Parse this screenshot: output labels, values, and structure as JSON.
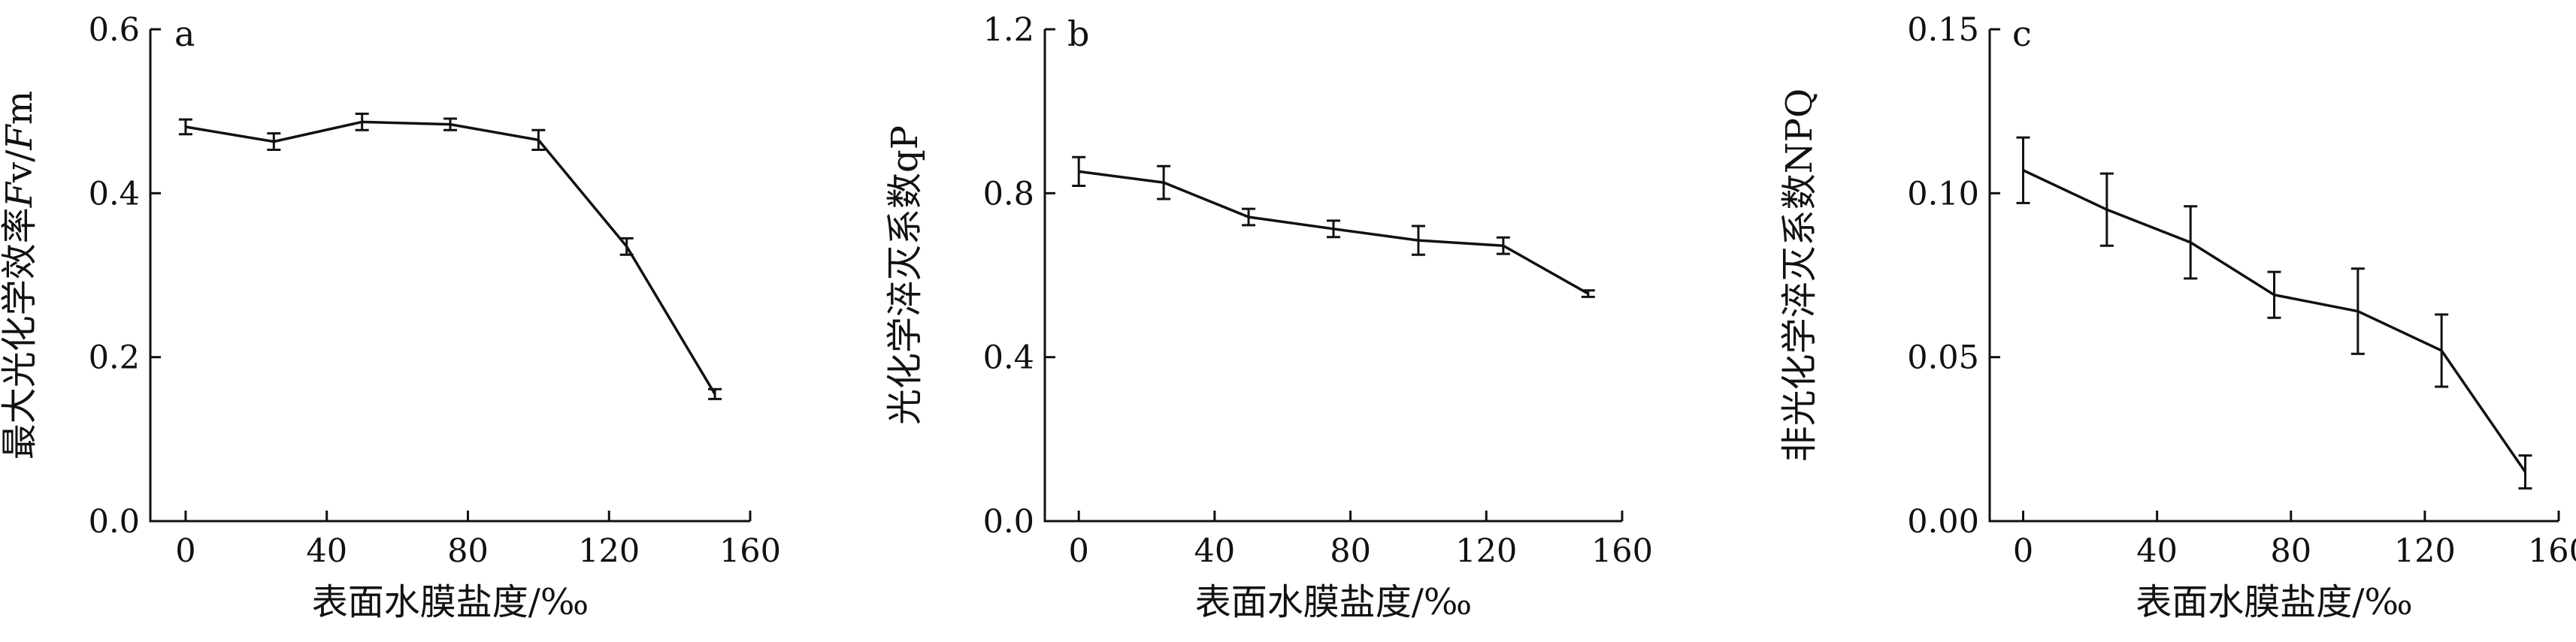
{
  "chart_data": [
    {
      "type": "line",
      "panel": "a",
      "xlabel": "表面水膜盐度/‰",
      "ylabel": "最大光化学效率Fv/Fm",
      "ylabel_parts": [
        {
          "text": "最大光化学效率",
          "italic": false
        },
        {
          "text": "F",
          "italic": true
        },
        {
          "text": "v/",
          "italic": false
        },
        {
          "text": "F",
          "italic": true
        },
        {
          "text": "m",
          "italic": false
        }
      ],
      "xlim": [
        -10,
        160
      ],
      "ylim": [
        0,
        0.6
      ],
      "x_ticks": [
        0,
        40,
        80,
        120,
        160
      ],
      "y_ticks": [
        0,
        0.2,
        0.4,
        0.6
      ],
      "x_tick_labels": [
        "0",
        "40",
        "80",
        "120",
        "160"
      ],
      "y_tick_labels": [
        "0.0",
        "0.2",
        "0.4",
        "0.6"
      ],
      "x": [
        0,
        25,
        50,
        75,
        100,
        125,
        150
      ],
      "y": [
        0.481,
        0.463,
        0.487,
        0.484,
        0.465,
        0.335,
        0.155
      ],
      "err": [
        0.009,
        0.01,
        0.01,
        0.007,
        0.012,
        0.01,
        0.006
      ]
    },
    {
      "type": "line",
      "panel": "b",
      "xlabel": "表面水膜盐度/‰",
      "ylabel": "光化学淬灭系数qP",
      "ylabel_parts": [
        {
          "text": "光化学淬灭系数qP",
          "italic": false
        }
      ],
      "xlim": [
        -10,
        160
      ],
      "ylim": [
        0,
        1.2
      ],
      "x_ticks": [
        0,
        40,
        80,
        120,
        160
      ],
      "y_ticks": [
        0,
        0.4,
        0.8,
        1.2
      ],
      "x_tick_labels": [
        "0",
        "40",
        "80",
        "120",
        "160"
      ],
      "y_tick_labels": [
        "0.0",
        "0.4",
        "0.8",
        "1.2"
      ],
      "x": [
        0,
        25,
        50,
        75,
        100,
        125,
        150
      ],
      "y": [
        0.853,
        0.826,
        0.742,
        0.713,
        0.685,
        0.672,
        0.555
      ],
      "err": [
        0.035,
        0.04,
        0.02,
        0.02,
        0.035,
        0.02,
        0.008
      ]
    },
    {
      "type": "line",
      "panel": "c",
      "xlabel": "表面水膜盐度/‰",
      "ylabel": "非光化学淬灭系数NPQ",
      "ylabel_parts": [
        {
          "text": "非光化学淬灭系数NPQ",
          "italic": false
        }
      ],
      "xlim": [
        -10,
        160
      ],
      "ylim": [
        0,
        0.15
      ],
      "x_ticks": [
        0,
        40,
        80,
        120,
        160
      ],
      "y_ticks": [
        0,
        0.05,
        0.1,
        0.15
      ],
      "x_tick_labels": [
        "0",
        "40",
        "80",
        "120",
        "160"
      ],
      "y_tick_labels": [
        "0.00",
        "0.05",
        "0.10",
        "0.15"
      ],
      "x": [
        0,
        25,
        50,
        75,
        100,
        125,
        150
      ],
      "y": [
        0.107,
        0.095,
        0.085,
        0.069,
        0.064,
        0.052,
        0.015
      ],
      "err": [
        0.01,
        0.011,
        0.011,
        0.007,
        0.013,
        0.011,
        0.005
      ]
    }
  ]
}
